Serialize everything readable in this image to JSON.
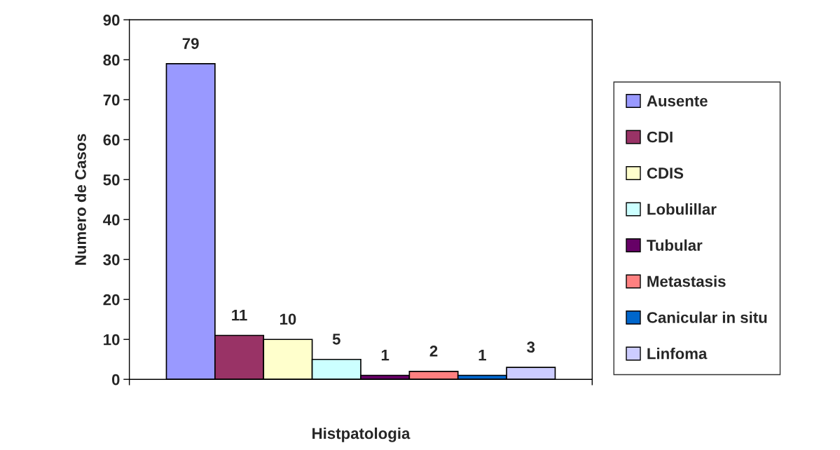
{
  "chart_data": {
    "type": "bar",
    "xlabel": "Histpatologia",
    "ylabel": "Numero de Casos",
    "categories": [
      null
    ],
    "series": [
      {
        "name": "Ausente",
        "color": "#9999ff",
        "values": [
          79
        ]
      },
      {
        "name": "CDI",
        "color": "#993366",
        "values": [
          11
        ]
      },
      {
        "name": "CDIS",
        "color": "#ffffcc",
        "values": [
          10
        ]
      },
      {
        "name": "Lobulillar",
        "color": "#ccffff",
        "values": [
          5
        ]
      },
      {
        "name": "Tubular",
        "color": "#660066",
        "values": [
          1
        ]
      },
      {
        "name": "Metastasis",
        "color": "#ff8080",
        "values": [
          2
        ]
      },
      {
        "name": "Canicular in situ",
        "color": "#0066cc",
        "values": [
          1
        ]
      },
      {
        "name": "Linfoma",
        "color": "#ccccff",
        "values": [
          3
        ]
      }
    ],
    "ylim": [
      0,
      90
    ],
    "yticks": [
      0,
      10,
      20,
      30,
      40,
      50,
      60,
      70,
      80,
      90
    ],
    "data_labels": true,
    "legend": "right",
    "grid": false
  }
}
